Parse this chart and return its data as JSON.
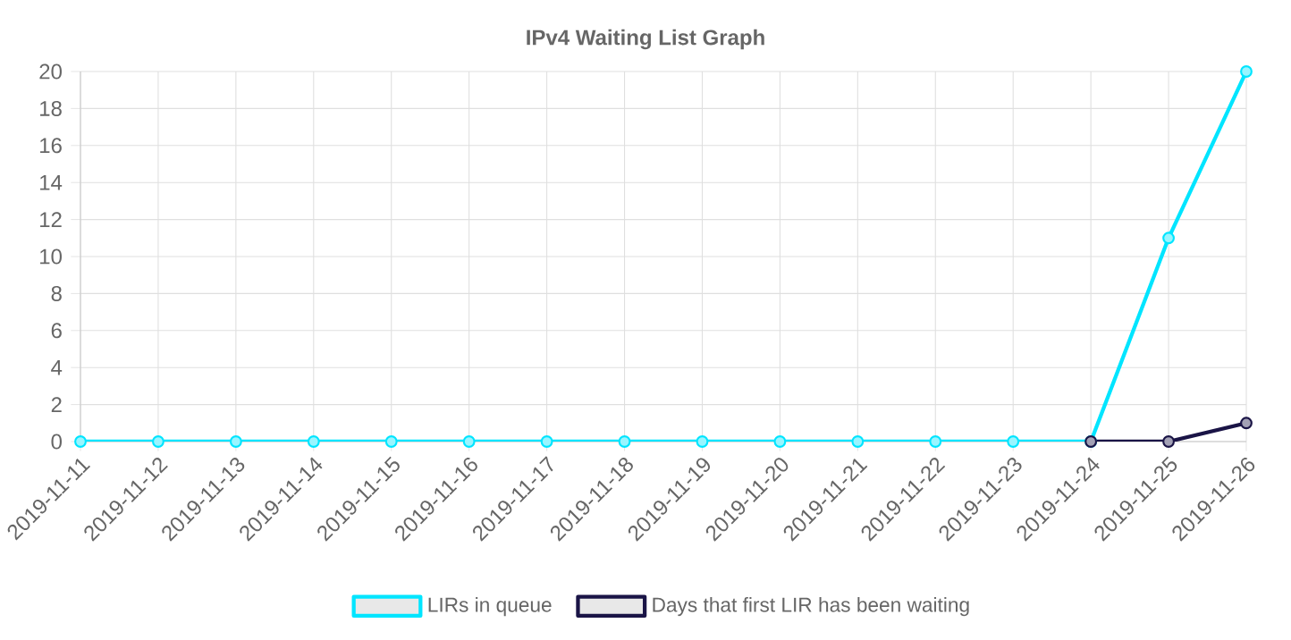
{
  "chart_data": {
    "type": "line",
    "title": "IPv4 Waiting List Graph",
    "categories": [
      "2019-11-11",
      "2019-11-12",
      "2019-11-13",
      "2019-11-14",
      "2019-11-15",
      "2019-11-16",
      "2019-11-17",
      "2019-11-18",
      "2019-11-19",
      "2019-11-20",
      "2019-11-21",
      "2019-11-22",
      "2019-11-23",
      "2019-11-24",
      "2019-11-25",
      "2019-11-26"
    ],
    "series": [
      {
        "name": "LIRs in queue",
        "color": "#00e5ff",
        "values": [
          0,
          0,
          0,
          0,
          0,
          0,
          0,
          0,
          0,
          0,
          0,
          0,
          0,
          0,
          11,
          20
        ]
      },
      {
        "name": "Days that first LIR has been waiting",
        "color": "#1a1446",
        "values": [
          null,
          null,
          null,
          null,
          null,
          null,
          null,
          null,
          null,
          null,
          null,
          null,
          null,
          0,
          0,
          1
        ]
      }
    ],
    "ylim": [
      0,
      20
    ],
    "yticks": [
      0,
      2,
      4,
      6,
      8,
      10,
      12,
      14,
      16,
      18,
      20
    ],
    "grid": true,
    "legend": "bottom",
    "marker": "circle",
    "line_style": "solid"
  }
}
